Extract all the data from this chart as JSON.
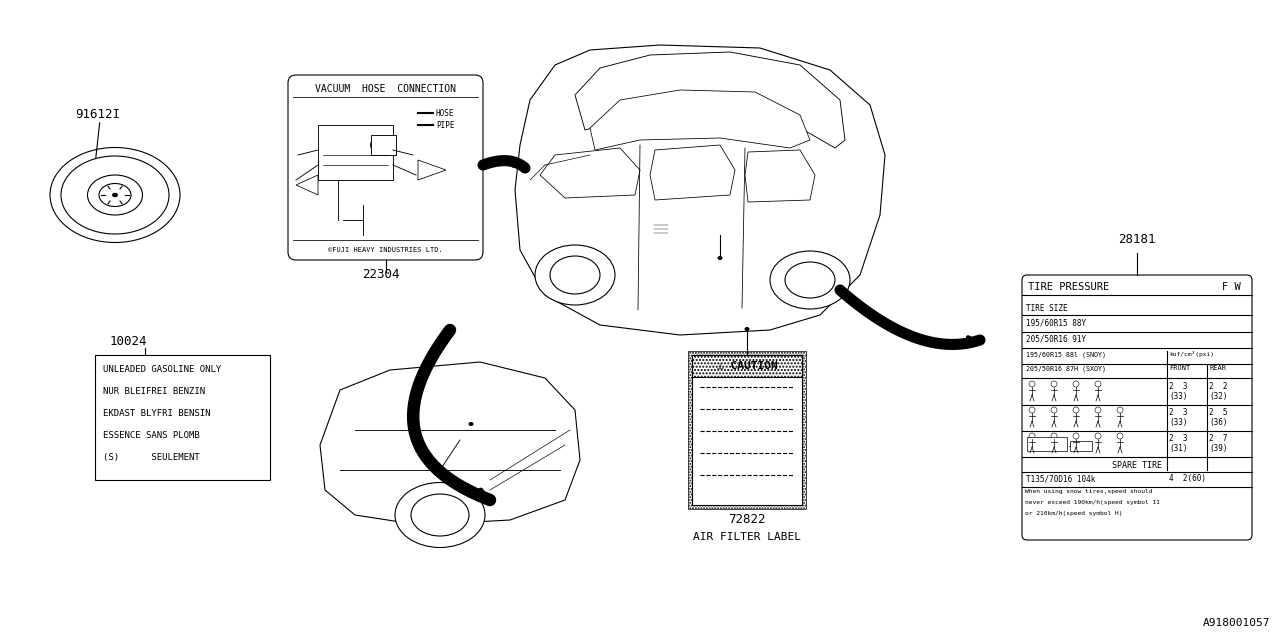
{
  "bg_color": "#ffffff",
  "line_color": "#000000",
  "fig_id": "A918001057",
  "part_numbers": {
    "spare_wheel": "91612I",
    "fuel_label": "10024",
    "vacuum_hose": "22304",
    "tire_pressure": "28181",
    "air_filter": "72822"
  },
  "air_filter_label_text": "AIR FILTER LABEL",
  "caution_label_text": "⚠ CAUTION",
  "vacuum_hose_title": "VACUUM  HOSE  CONNECTION",
  "vacuum_hose_footer": "©FUJI HEAVY INDUSTRIES LTD.",
  "tire_pressure_title": "TIRE PRESSURE",
  "fuel_label_lines": [
    "UNLEADED GASOLINE ONLY",
    "NUR BLEIFREI BENZIN",
    "EKDAST BLYFRI BENSIN",
    "ESSENCE SANS PLOMB",
    "(S)      SEULEMENT"
  ]
}
